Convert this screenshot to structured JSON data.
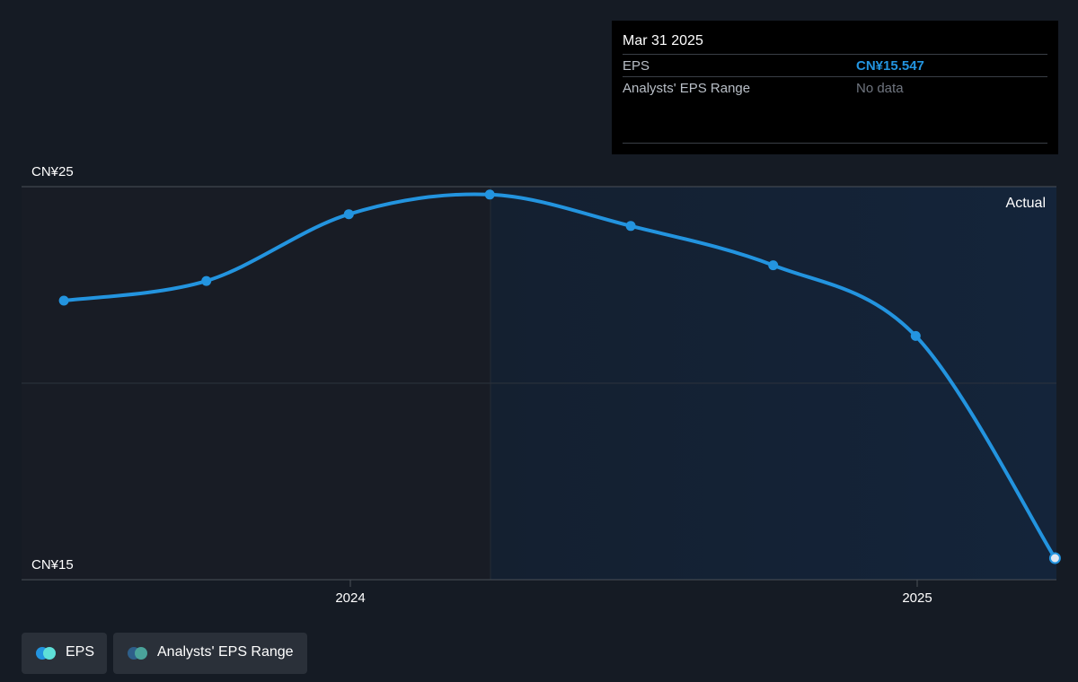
{
  "chart_data": {
    "type": "line",
    "series": [
      {
        "name": "EPS",
        "color": "#2394df",
        "x": [
          "2023-06-30",
          "2023-09-30",
          "2023-12-31",
          "2024-03-31",
          "2024-06-30",
          "2024-09-30",
          "2024-12-31",
          "2025-03-31"
        ],
        "values": [
          22.1,
          22.6,
          24.3,
          24.8,
          24.0,
          23.0,
          21.2,
          15.547
        ]
      }
    ],
    "y_axis": {
      "min": 15,
      "max": 25,
      "tick_labels": [
        "CN¥25",
        "CN¥15"
      ],
      "gridlines": [
        15,
        20,
        25
      ]
    },
    "x_axis": {
      "tick_labels": [
        "2024",
        "2025"
      ],
      "ticks": [
        "2024-01-01",
        "2025-01-01"
      ]
    },
    "region_label": "Actual",
    "highlight_start": "2024-04-01",
    "grid": true
  },
  "tooltip": {
    "date": "Mar 31 2025",
    "rows": [
      {
        "label": "EPS",
        "value": "CN¥15.547"
      },
      {
        "label": "Analysts' EPS Range",
        "value": "No data"
      }
    ]
  },
  "legend": [
    {
      "label": "EPS",
      "colors": [
        "#2394df",
        "#5ee0d8"
      ]
    },
    {
      "label": "Analysts' EPS Range",
      "colors": [
        "#2e5f8a",
        "#4aa39a"
      ]
    }
  ],
  "colors": {
    "background": "#151b24",
    "past_area": "#181c25",
    "actual_area": "#14243a",
    "line": "#2394df"
  }
}
